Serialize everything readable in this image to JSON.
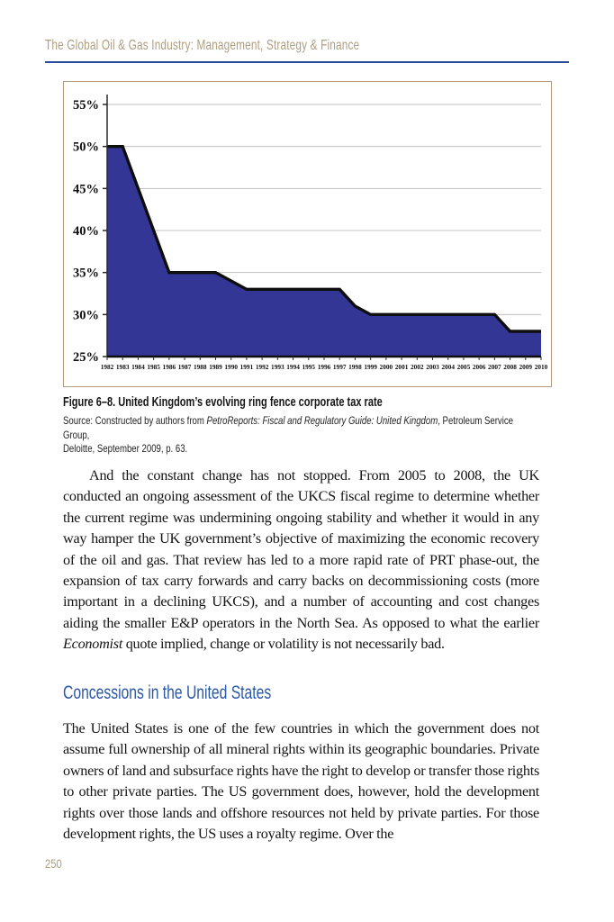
{
  "header": {
    "title": "The Global Oil & Gas Industry: Management, Strategy & Finance"
  },
  "figure": {
    "caption": "Figure 6–8. United Kingdom’s evolving ring fence corporate tax rate",
    "source_prefix": "Source: Constructed by authors from ",
    "source_title": "PetroReports: Fiscal and Regulatory Guide: United Kingdom",
    "source_suffix": ", Petroleum Service Group,",
    "source_line2": "Deloitte, September 2009, p. 63."
  },
  "body": {
    "para1_a": "And the constant change has not stopped. From 2005 to 2008, the UK conducted an ongoing assessment of the UKCS fiscal regime to determine whether the current regime was undermining ongoing stability and whether it would in any way hamper the UK government’s objective of maximizing the economic recovery of the oil and gas. That review has led to a more rapid rate of PRT phase-out, the expansion of tax carry forwards and carry backs on decommissioning costs (more important in a declining UKCS), and a number of accounting and cost changes aiding the smaller E&P operators in the North Sea. As opposed to what the earlier ",
    "para1_italic": "Economist",
    "para1_b": " quote implied, change or volatility is not necessarily bad."
  },
  "section": {
    "heading": "Concessions in the United States",
    "para": "The United States is one of the few countries in which the government does not assume full ownership of all mineral rights within its geographic boundaries. Private owners of land and subsurface rights have the right to develop or transfer those rights to other private parties. The US government does, however, hold the development rights over those lands and offshore resources not held by private parties. For those development rights, the US uses a royalty regime. Over the"
  },
  "footer": {
    "page_number": "250"
  },
  "colors": {
    "header_text": "#ae9e80",
    "header_rule": "#2a4d9b",
    "section_heading": "#2b57a7",
    "chart_border": "#b49a7e"
  },
  "chart_data": {
    "type": "area",
    "title": "",
    "xlabel": "",
    "ylabel": "",
    "x": [
      1982,
      1983,
      1984,
      1985,
      1986,
      1987,
      1988,
      1989,
      1990,
      1991,
      1992,
      1993,
      1994,
      1995,
      1996,
      1997,
      1998,
      1999,
      2000,
      2001,
      2002,
      2003,
      2004,
      2005,
      2006,
      2007,
      2008,
      2009,
      2010
    ],
    "values": [
      50,
      50,
      45,
      40,
      35,
      35,
      35,
      35,
      34,
      33,
      33,
      33,
      33,
      33,
      33,
      33,
      31,
      30,
      30,
      30,
      30,
      30,
      30,
      30,
      30,
      30,
      28,
      28,
      28
    ],
    "ylim": [
      25,
      55
    ],
    "ytick_step": 5,
    "ytick_suffix": "%",
    "grid": true,
    "legend": "none",
    "fill_color": "#333695",
    "line_color": "#0e0e0e",
    "grid_color": "#bfbfbf",
    "axis_color": "#2a2a2a"
  }
}
